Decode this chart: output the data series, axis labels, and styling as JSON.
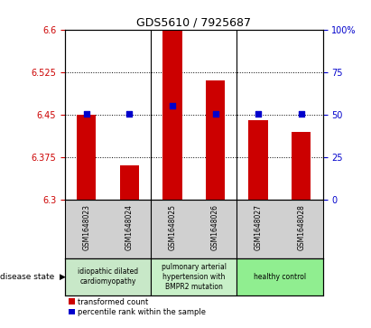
{
  "title": "GDS5610 / 7925687",
  "samples": [
    "GSM1648023",
    "GSM1648024",
    "GSM1648025",
    "GSM1648026",
    "GSM1648027",
    "GSM1648028"
  ],
  "bar_values": [
    6.45,
    6.36,
    6.6,
    6.51,
    6.44,
    6.42
  ],
  "blue_values": [
    6.452,
    6.452,
    6.465,
    6.452,
    6.452,
    6.452
  ],
  "ylim_left": [
    6.3,
    6.6
  ],
  "ylim_right": [
    0,
    100
  ],
  "yticks_left": [
    6.3,
    6.375,
    6.45,
    6.525,
    6.6
  ],
  "yticks_right": [
    0,
    25,
    50,
    75,
    100
  ],
  "ytick_labels_left": [
    "6.3",
    "6.375",
    "6.45",
    "6.525",
    "6.6"
  ],
  "ytick_labels_right": [
    "0",
    "25",
    "50",
    "75",
    "100%"
  ],
  "bar_color": "#cc0000",
  "blue_color": "#0000cc",
  "plot_bg": "#ffffff",
  "label_bg": "#d0d0d0",
  "disease_groups": [
    {
      "label": "idiopathic dilated\ncardiomyopathy",
      "start": 0,
      "end": 1,
      "color": "#c8e8c8"
    },
    {
      "label": "pulmonary arterial\nhypertension with\nBMPR2 mutation",
      "start": 2,
      "end": 3,
      "color": "#c8f0c8"
    },
    {
      "label": "healthy control",
      "start": 4,
      "end": 5,
      "color": "#90ee90"
    }
  ],
  "legend_red_label": "transformed count",
  "legend_blue_label": "percentile rank within the sample",
  "disease_state_label": "disease state"
}
